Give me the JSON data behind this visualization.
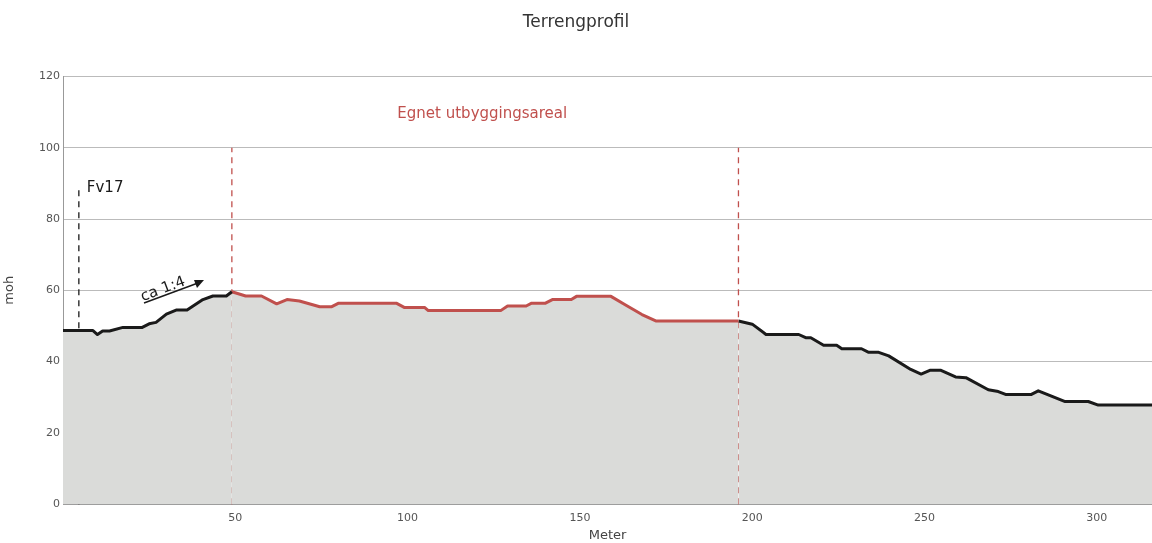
{
  "chart_data": {
    "type": "area",
    "title": "Terrengprofil",
    "xlabel": "Meter",
    "ylabel": "moh",
    "xlim": [
      0,
      316
    ],
    "xticks": [
      50,
      100,
      150,
      200,
      250,
      300
    ],
    "ylim": [
      0,
      120
    ],
    "yticks": [
      0,
      20,
      40,
      60,
      80,
      100,
      120
    ],
    "grid": "y",
    "legend": false,
    "marker": "none",
    "series": [
      {
        "color": "#1a1a1a",
        "x": [
          0,
          8.7,
          10,
          11.5,
          13.5,
          17.4,
          23,
          25,
          27,
          30,
          33,
          36,
          40.6,
          43.5,
          47.4,
          49
        ],
        "values": [
          48.7,
          48.7,
          47.6,
          48.6,
          48.6,
          49.6,
          49.6,
          50.6,
          51,
          53.3,
          54.5,
          54.5,
          57.4,
          58.4,
          58.4,
          59.6
        ]
      },
      {
        "color": "#c0504d",
        "x": [
          49,
          53,
          57.6,
          62,
          65,
          68.6,
          74.5,
          78,
          80,
          96.7,
          99,
          104.9,
          106,
          127,
          129,
          134.4,
          136,
          140,
          142,
          147.5,
          149,
          159,
          163,
          168,
          172,
          196
        ],
        "values": [
          59.6,
          58.4,
          58.4,
          56.2,
          57.4,
          57,
          55.4,
          55.4,
          56.4,
          56.4,
          55.2,
          55.2,
          54.3,
          54.3,
          55.6,
          55.6,
          56.4,
          56.4,
          57.4,
          57.4,
          58.3,
          58.3,
          56,
          53.2,
          51.4,
          51.4
        ]
      },
      {
        "color": "#1a1a1a",
        "x": [
          196,
          200,
          204,
          213.5,
          215.5,
          217,
          220.7,
          224.5,
          226,
          231.7,
          233.8,
          236.7,
          239.6,
          246,
          249,
          251.7,
          254.6,
          259,
          262,
          268.5,
          271.4,
          273.5,
          281,
          283,
          285,
          290.8,
          297.5,
          300.4,
          316
        ],
        "values": [
          51.4,
          50.5,
          47.6,
          47.6,
          46.7,
          46.7,
          44.6,
          44.6,
          43.6,
          43.6,
          42.6,
          42.6,
          41.6,
          37.8,
          36.5,
          37.6,
          37.6,
          35.7,
          35.5,
          32.1,
          31.6,
          30.8,
          30.8,
          31.8,
          31,
          28.8,
          28.8,
          27.8,
          27.8
        ]
      }
    ],
    "ref_lines": [
      {
        "axis": "x",
        "value": 4.6,
        "label": "Fv17",
        "color": "#1a1a1a",
        "line_style": "dashed"
      },
      {
        "axis": "x",
        "value": 49,
        "color": "#c0504d",
        "line_style": "dashed"
      },
      {
        "axis": "x",
        "value": 196,
        "color": "#c0504d",
        "line_style": "dashed"
      }
    ],
    "annotations": [
      "Egnet utbyggingsareal",
      "ca 1:4"
    ]
  }
}
